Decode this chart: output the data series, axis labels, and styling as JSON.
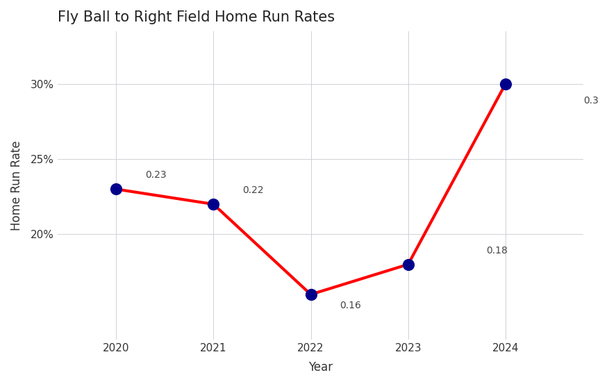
{
  "title": "Fly Ball to Right Field Home Run Rates",
  "xlabel": "Year",
  "ylabel": "Home Run Rate",
  "years": [
    2020,
    2021,
    2022,
    2023,
    2024
  ],
  "values": [
    0.23,
    0.22,
    0.16,
    0.18,
    0.3
  ],
  "labels": [
    "0.23",
    "0.22",
    "0.16",
    "0.18",
    "0.3"
  ],
  "line_color": "#FF0000",
  "marker_color": "#00008B",
  "background_color": "#FFFFFF",
  "grid_color": "#D0D0D8",
  "ylim_min": 0.13,
  "ylim_max": 0.335,
  "xlim_min": 2019.4,
  "xlim_max": 2024.8,
  "yticks": [
    0.2,
    0.25,
    0.3
  ],
  "ytick_labels": [
    "20%",
    "25%",
    "30%"
  ],
  "title_fontsize": 15,
  "axis_label_fontsize": 12,
  "tick_fontsize": 11,
  "annotation_fontsize": 10,
  "line_width": 3.0,
  "marker_size": 130
}
